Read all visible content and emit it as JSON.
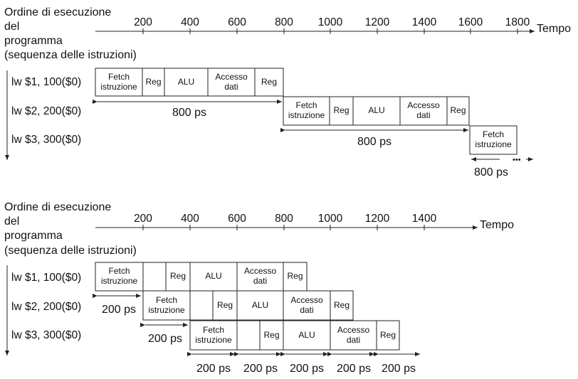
{
  "top": {
    "order_label": [
      "Ordine di esecuzione",
      "del",
      "programma",
      "(sequenza delle istruzioni)"
    ],
    "axis_label": "Tempo",
    "ticks": [
      "200",
      "400",
      "600",
      "800",
      "1000",
      "1200",
      "1400",
      "1600",
      "1800"
    ],
    "instructions": [
      "lw  $1, 100($0)",
      "lw  $2, 200($0)",
      "lw  $3, 300($0)"
    ],
    "stages": {
      "fetch": [
        "Fetch",
        "istruzione"
      ],
      "reg": "Reg",
      "alu": "ALU",
      "mem": [
        "Accesso",
        "dati"
      ]
    },
    "durations": [
      "800 ps",
      "800 ps",
      "800 ps"
    ],
    "continuation": "•••"
  },
  "bottom": {
    "order_label": [
      "Ordine di esecuzione",
      "del",
      "programma",
      "(sequenza delle istruzioni)"
    ],
    "axis_label": "Tempo",
    "ticks": [
      "200",
      "400",
      "600",
      "800",
      "1000",
      "1200",
      "1400"
    ],
    "instructions": [
      "lw  $1, 100($0)",
      "lw  $2, 200($0)",
      "lw  $3, 300($0)"
    ],
    "stages": {
      "fetch": [
        "Fetch",
        "istruzione"
      ],
      "reg": "Reg",
      "alu": "ALU",
      "mem": [
        "Accesso",
        "dati"
      ]
    },
    "durations": [
      "200 ps",
      "200 ps",
      "200 ps",
      "200 ps",
      "200 ps",
      "200 ps",
      "200 ps"
    ]
  }
}
